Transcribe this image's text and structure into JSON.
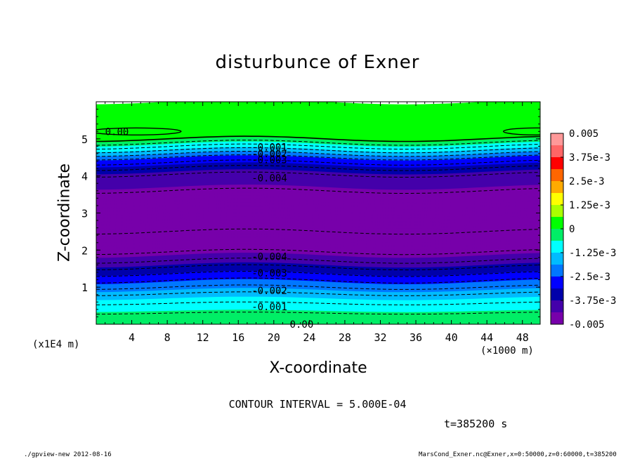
{
  "chart_data": {
    "type": "heatmap",
    "title": "disturbunce of Exner",
    "xlabel": "X-coordinate",
    "ylabel": "Z-coordinate",
    "x_unit": "(×1000 m)",
    "y_unit": "(x1E4 m)",
    "xlim": [
      0,
      50
    ],
    "ylim": [
      0,
      6
    ],
    "x_ticks": [
      "4",
      "8",
      "12",
      "16",
      "20",
      "24",
      "28",
      "32",
      "36",
      "40",
      "44",
      "48"
    ],
    "y_ticks": [
      "1",
      "2",
      "3",
      "4",
      "5"
    ],
    "colorbar": {
      "min": -0.005,
      "max": 0.005,
      "labels": [
        "0.005",
        "3.75e-3",
        "2.5e-3",
        "1.25e-3",
        "0",
        "-1.25e-3",
        "-2.5e-3",
        "-3.75e-3",
        "-0.005"
      ],
      "colors": [
        "#ff9999",
        "#ff6666",
        "#ff0000",
        "#ff6600",
        "#ffaa00",
        "#ffff00",
        "#aaff00",
        "#00ff00",
        "#00ee66",
        "#00ffff",
        "#00bbff",
        "#0077ff",
        "#0000ff",
        "#0000aa",
        "#4400aa",
        "#7700aa"
      ]
    },
    "profile": [
      {
        "z": 0.0,
        "v": -0.0002
      },
      {
        "z": 0.25,
        "v": -0.0004
      },
      {
        "z": 0.5,
        "v": -0.0009
      },
      {
        "z": 0.75,
        "v": -0.0013
      },
      {
        "z": 1.0,
        "v": -0.002
      },
      {
        "z": 1.25,
        "v": -0.0027
      },
      {
        "z": 1.5,
        "v": -0.0034
      },
      {
        "z": 1.75,
        "v": -0.0041
      },
      {
        "z": 2.0,
        "v": -0.0046
      },
      {
        "z": 2.5,
        "v": -0.005
      },
      {
        "z": 3.0,
        "v": -0.005
      },
      {
        "z": 3.5,
        "v": -0.0046
      },
      {
        "z": 4.0,
        "v": -0.0041
      },
      {
        "z": 4.25,
        "v": -0.0034
      },
      {
        "z": 4.5,
        "v": -0.0025
      },
      {
        "z": 4.75,
        "v": -0.0012
      },
      {
        "z": 5.0,
        "v": 0.0
      },
      {
        "z": 6.0,
        "v": 0.0001
      }
    ],
    "contour_labels": [
      {
        "text": "0.00",
        "x": 1.0,
        "z": 5.2
      },
      {
        "text": "-0.001",
        "x": 17.5,
        "z": 4.78
      },
      {
        "text": "-0.002",
        "x": 17.5,
        "z": 4.6
      },
      {
        "text": "-0.003",
        "x": 17.5,
        "z": 4.44
      },
      {
        "text": "-0.004",
        "x": 17.5,
        "z": 3.95
      },
      {
        "text": "-0.004",
        "x": 17.5,
        "z": 1.83
      },
      {
        "text": "-0.003",
        "x": 17.5,
        "z": 1.38
      },
      {
        "text": "-0.002",
        "x": 17.5,
        "z": 0.91
      },
      {
        "text": "-0.001",
        "x": 17.5,
        "z": 0.47
      },
      {
        "text": "0.00",
        "x": 21.8,
        "z": 0.0
      }
    ],
    "contour_interval_text": "CONTOUR INTERVAL = 5.000E-04",
    "time_text": "t=385200 s"
  },
  "footer": {
    "left": "./gpview-new  2012-08-16",
    "right": "MarsCond_Exner.nc@Exner,x=0:50000,z=0:60000,t=385200"
  }
}
